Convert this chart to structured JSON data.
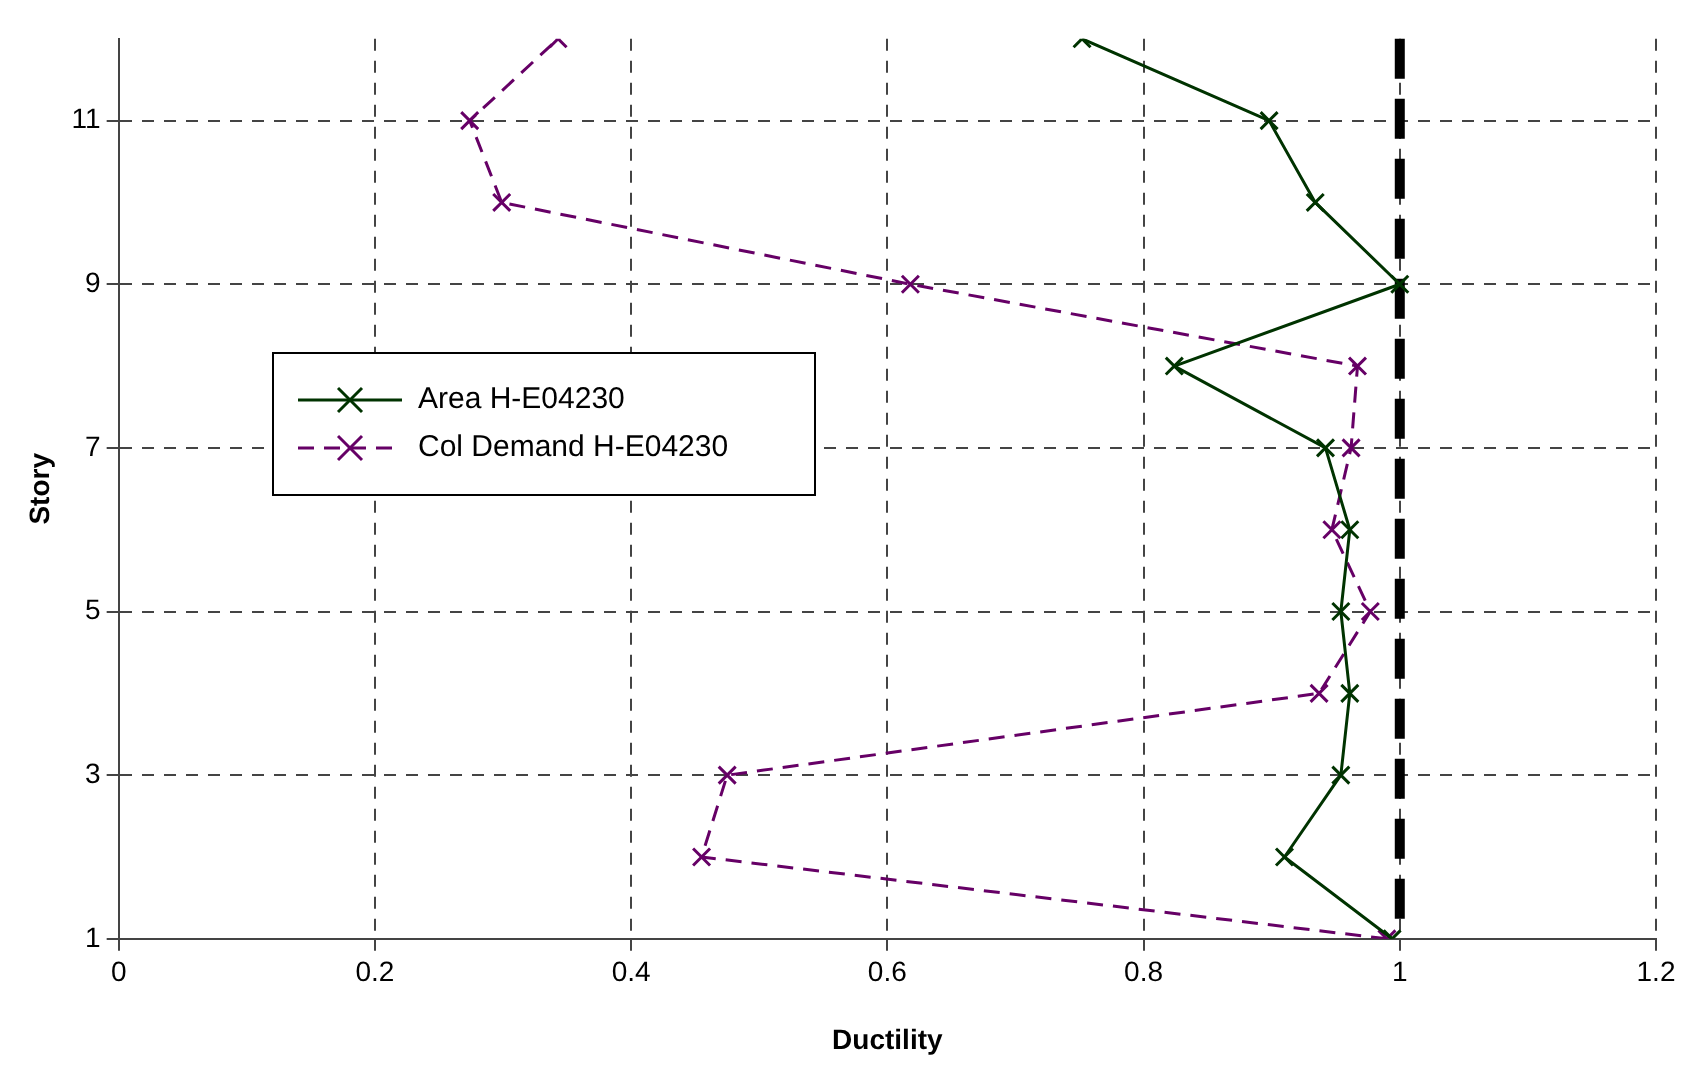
{
  "chart_data": {
    "type": "line",
    "xlabel": "Ductility",
    "ylabel": "Story",
    "xlim": [
      0,
      1.2
    ],
    "xticks": [
      0,
      0.2,
      0.4,
      0.6,
      0.8,
      1,
      1.2
    ],
    "ylim": [
      1,
      12
    ],
    "yticks": [
      1,
      3,
      5,
      7,
      9,
      11
    ],
    "grid": true,
    "legend": "left",
    "series": [
      {
        "name": "Area H-E04230",
        "color": "#003300",
        "marker": "cross",
        "line_style": "solid",
        "x": [
          0.994,
          0.91,
          0.954,
          0.961,
          0.954,
          0.961,
          0.942,
          0.824,
          1.0,
          0.934,
          0.898,
          0.752
        ],
        "values": [
          1,
          2,
          3,
          4,
          5,
          6,
          7,
          8,
          9,
          10,
          11,
          12
        ]
      },
      {
        "name": "Col Demand H-E04230",
        "color": "#660066",
        "marker": "cross",
        "line_style": "dashed",
        "x": [
          0.99,
          0.455,
          0.475,
          0.937,
          0.977,
          0.947,
          0.962,
          0.967,
          0.618,
          0.299,
          0.274,
          0.343
        ],
        "values": [
          1,
          2,
          3,
          4,
          5,
          6,
          7,
          8,
          9,
          10,
          11,
          12
        ]
      }
    ],
    "ref_lines": [
      {
        "axis": "x",
        "value": 1,
        "color": "#000000",
        "line_style": "dashed"
      }
    ]
  }
}
